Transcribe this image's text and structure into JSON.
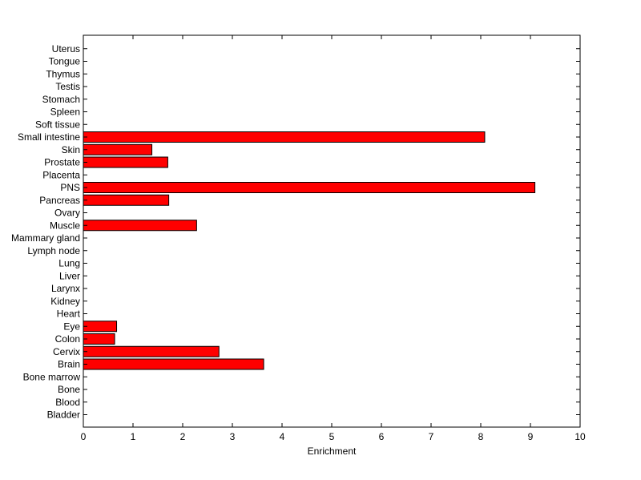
{
  "chart_data": {
    "type": "bar",
    "orientation": "horizontal",
    "title": "",
    "xlabel": "Enrichment",
    "ylabel": "",
    "xlim": [
      0,
      10
    ],
    "xticks": [
      "0",
      "1",
      "2",
      "3",
      "4",
      "5",
      "6",
      "7",
      "8",
      "9",
      "10"
    ],
    "grid": false,
    "bar_color": "#ff0000",
    "categories": [
      "Bladder",
      "Blood",
      "Bone",
      "Bone marrow",
      "Brain",
      "Cervix",
      "Colon",
      "Eye",
      "Heart",
      "Kidney",
      "Larynx",
      "Liver",
      "Lung",
      "Lymph node",
      "Mammary gland",
      "Muscle",
      "Ovary",
      "Pancreas",
      "PNS",
      "Placenta",
      "Prostate",
      "Skin",
      "Small intestine",
      "Soft tissue",
      "Spleen",
      "Stomach",
      "Testis",
      "Thymus",
      "Tongue",
      "Uterus"
    ],
    "values": [
      0,
      0,
      0,
      0,
      3.63,
      2.73,
      0.63,
      0.67,
      0,
      0,
      0,
      0,
      0,
      0,
      0,
      2.28,
      0,
      1.72,
      9.09,
      0,
      1.7,
      1.38,
      8.08,
      0,
      0,
      0,
      0,
      0,
      0,
      0
    ]
  }
}
